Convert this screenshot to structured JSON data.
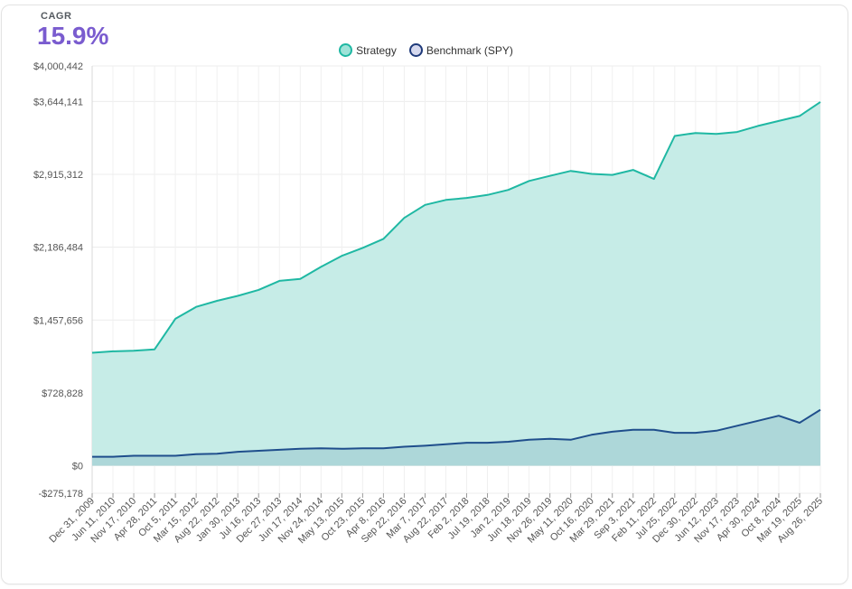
{
  "kpi": {
    "label": "CAGR",
    "value": "15.9%",
    "accent": "#7a5ccf"
  },
  "legend": {
    "strategy_label": "Strategy",
    "benchmark_label": "Benchmark (SPY)"
  },
  "chart_data": {
    "type": "area",
    "title": "",
    "xlabel": "",
    "ylabel": "",
    "ylim": [
      -275178,
      4000442
    ],
    "grid": true,
    "legend_position": "top-center",
    "y_ticks": [
      4000442,
      3644141,
      2915312,
      2186484,
      1457656,
      728828,
      0,
      -275178
    ],
    "y_tick_labels": [
      "$4,000,442",
      "$3,644,141",
      "$2,915,312",
      "$2,186,484",
      "$1,457,656",
      "$728,828",
      "$0",
      "-$275,178"
    ],
    "x_tick_labels": [
      "Dec 31, 2009",
      "Jun 11, 2010",
      "Nov 17, 2010",
      "Apr 28, 2011",
      "Oct 5, 2011",
      "Mar 15, 2012",
      "Aug 22, 2012",
      "Jan 30, 2013",
      "Jul 16, 2013",
      "Dec 27, 2013",
      "Jun 17, 2014",
      "Nov 24, 2014",
      "May 13, 2015",
      "Oct 23, 2015",
      "Apr 8, 2016",
      "Sep 22, 2016",
      "Mar 7, 2017",
      "Aug 22, 2017",
      "Feb 2, 2018",
      "Jul 19, 2018",
      "Jan 2, 2019",
      "Jun 18, 2019",
      "Nov 26, 2019",
      "May 11, 2020",
      "Oct 16, 2020",
      "Mar 29, 2021",
      "Sep 3, 2021",
      "Feb 11, 2022",
      "Jul 25, 2022",
      "Dec 30, 2022",
      "Jun 12, 2023",
      "Nov 17, 2023",
      "Apr 30, 2024",
      "Oct 8, 2024",
      "Mar 19, 2025",
      "Aug 26, 2025"
    ],
    "series": [
      {
        "name": "Strategy",
        "color": "#1fb8a3",
        "fill": "#c3ebe6",
        "values": [
          1130000,
          1145000,
          1150000,
          1165000,
          1470000,
          1590000,
          1650000,
          1700000,
          1760000,
          1850000,
          1870000,
          1990000,
          2100000,
          2180000,
          2270000,
          2480000,
          2610000,
          2660000,
          2680000,
          2710000,
          2760000,
          2850000,
          2900000,
          2950000,
          2920000,
          2910000,
          2960000,
          2870000,
          3300000,
          3330000,
          3320000,
          3340000,
          3400000,
          3450000,
          3500000,
          3640000
        ]
      },
      {
        "name": "Benchmark (SPY)",
        "color": "#1f4e8c",
        "fill": "#a6d2d6",
        "values": [
          90000,
          90000,
          100000,
          100000,
          100000,
          115000,
          120000,
          140000,
          150000,
          160000,
          170000,
          175000,
          170000,
          175000,
          175000,
          190000,
          200000,
          215000,
          230000,
          230000,
          240000,
          260000,
          270000,
          260000,
          310000,
          340000,
          360000,
          360000,
          330000,
          330000,
          350000,
          400000,
          450000,
          500000,
          430000,
          560000
        ]
      }
    ]
  }
}
